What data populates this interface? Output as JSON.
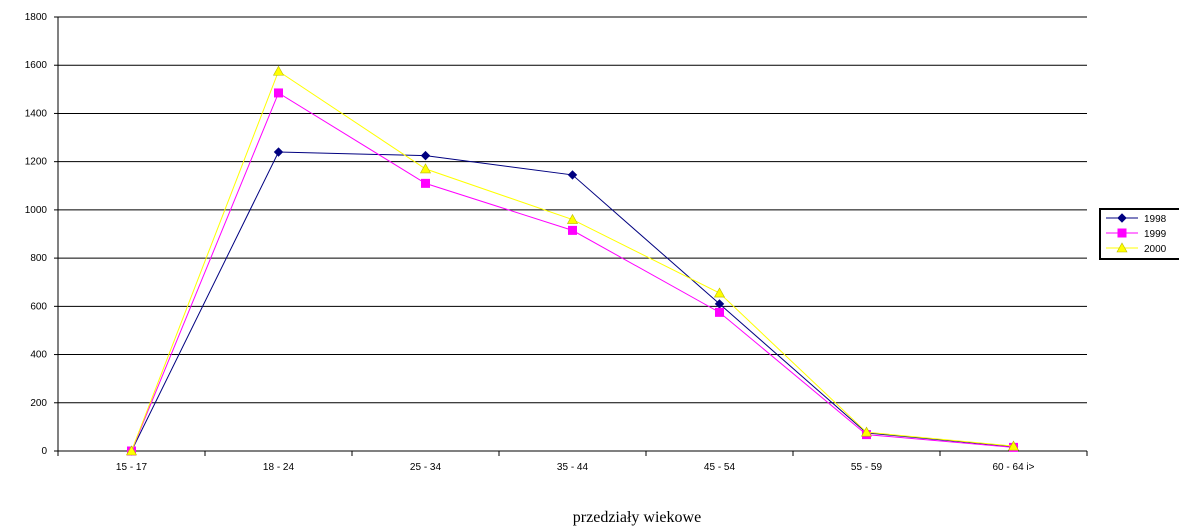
{
  "chart_data": {
    "type": "line",
    "categories": [
      "15 - 17",
      "18 - 24",
      "25 - 34",
      "35 - 44",
      "45 - 54",
      "55 - 59",
      "60 - 64 i>"
    ],
    "series": [
      {
        "name": "1998",
        "values": [
          0,
          1240,
          1225,
          1145,
          610,
          75,
          18
        ],
        "color": "#000080",
        "marker": "diamond"
      },
      {
        "name": "1999",
        "values": [
          0,
          1485,
          1110,
          915,
          575,
          68,
          15
        ],
        "color": "#ff00ff",
        "marker": "square"
      },
      {
        "name": "2000",
        "values": [
          0,
          1575,
          1170,
          960,
          655,
          78,
          20
        ],
        "color": "#ffff00",
        "marker": "triangle"
      }
    ],
    "title": "",
    "xlabel": "przedziały wiekowe",
    "ylabel": "",
    "ylim": [
      0,
      1800
    ],
    "yticks": [
      0,
      200,
      400,
      600,
      800,
      1000,
      1200,
      1400,
      1600,
      1800
    ],
    "ytick_labels": [
      "0",
      "200",
      "400",
      "600",
      "800",
      "1000",
      "1200",
      "1400",
      "1600",
      "1800"
    ],
    "grid": true,
    "legend": "right"
  }
}
